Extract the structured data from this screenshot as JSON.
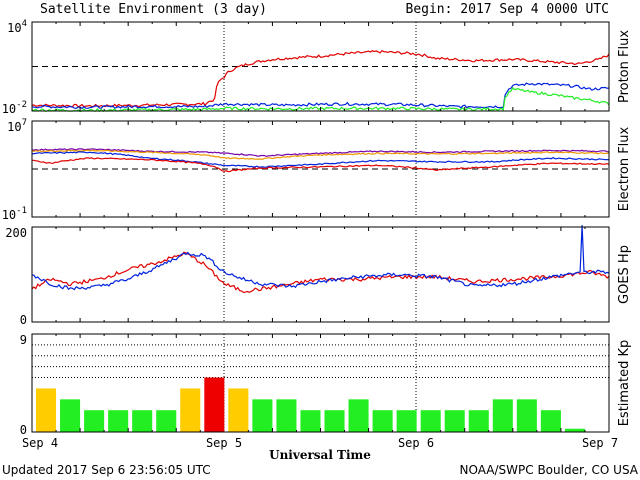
{
  "header": {
    "title": "Satellite Environment (3 day)",
    "begin": "Begin:  2017 Sep 4 0000 UTC"
  },
  "footer": {
    "updated": "Updated 2017 Sep  6 23:56:05 UTC",
    "credit": "NOAA/SWPC Boulder, CO USA"
  },
  "x_axis": {
    "label": "Universal Time",
    "ticks": [
      "Sep 4",
      "Sep 5",
      "Sep 6",
      "Sep 7"
    ]
  },
  "colors": {
    "red": "#e00000",
    "blue": "#0022dd",
    "green": "#22ee22",
    "purple": "#7700aa",
    "orange": "#ee9900",
    "kp_green": "#22ee22",
    "kp_yellow": "#ffcc00",
    "kp_red": "#ee0000"
  },
  "chart_data": [
    {
      "type": "line",
      "ylabel": "Proton Flux",
      "yscale": "log",
      "ylim": [
        0.01,
        10000
      ],
      "y_ticks": [
        {
          "base": "10",
          "exp": "4"
        },
        {
          "base": "10",
          "exp": "-2"
        }
      ],
      "threshold": 10,
      "x_days": [
        0,
        3
      ],
      "series": [
        {
          "color": "red",
          "x": [
            0,
            0.3,
            0.6,
            0.9,
            0.95,
            1.0,
            1.1,
            1.25,
            1.5,
            1.8,
            2.0,
            2.1,
            2.3,
            2.5,
            2.7,
            2.85,
            2.95,
            3.0
          ],
          "y": [
            0.025,
            0.022,
            0.025,
            0.03,
            0.06,
            2,
            12,
            30,
            50,
            100,
            70,
            35,
            25,
            30,
            20,
            15,
            30,
            60
          ]
        },
        {
          "color": "blue",
          "x": [
            0,
            0.3,
            0.6,
            0.9,
            1.0,
            1.3,
            1.6,
            1.9,
            2.2,
            2.45,
            2.5,
            2.6,
            2.8,
            2.9,
            3.0
          ],
          "y": [
            0.02,
            0.018,
            0.02,
            0.02,
            0.03,
            0.025,
            0.03,
            0.028,
            0.02,
            0.02,
            0.5,
            0.7,
            0.5,
            0.3,
            0.35
          ]
        },
        {
          "color": "green",
          "x": [
            0,
            0.3,
            0.6,
            0.9,
            1.0,
            1.3,
            1.6,
            1.9,
            2.2,
            2.45,
            2.5,
            2.6,
            2.8,
            3.0
          ],
          "y": [
            0.012,
            0.011,
            0.012,
            0.013,
            0.015,
            0.014,
            0.015,
            0.015,
            0.013,
            0.014,
            0.3,
            0.18,
            0.08,
            0.03
          ]
        }
      ]
    },
    {
      "type": "line",
      "ylabel": "Electron Flux",
      "yscale": "log",
      "ylim": [
        0.1,
        10000000
      ],
      "y_ticks": [
        {
          "base": "10",
          "exp": "7"
        },
        {
          "base": "10",
          "exp": "-1"
        }
      ],
      "threshold": 1000,
      "x_days": [
        0,
        3
      ],
      "series": [
        {
          "color": "purple",
          "x": [
            0,
            0.3,
            0.6,
            0.9,
            1.2,
            1.5,
            1.8,
            2.1,
            2.4,
            2.7,
            3.0
          ],
          "y": [
            40000,
            45000,
            30000,
            25000,
            12000,
            20000,
            30000,
            25000,
            30000,
            35000,
            30000
          ]
        },
        {
          "color": "orange",
          "x": [
            0,
            0.3,
            0.6,
            0.9,
            1.0,
            1.2,
            1.5,
            1.8,
            2.1,
            2.4,
            2.7,
            3.0
          ],
          "y": [
            30000,
            35000,
            25000,
            15000,
            8000,
            7000,
            15000,
            20000,
            18000,
            20000,
            25000,
            20000
          ]
        },
        {
          "color": "blue",
          "x": [
            0,
            0.3,
            0.6,
            0.9,
            1.0,
            1.2,
            1.5,
            1.8,
            2.1,
            2.4,
            2.7,
            3.0
          ],
          "y": [
            20000,
            25000,
            8000,
            3000,
            2000,
            1500,
            2500,
            5000,
            4000,
            4000,
            8000,
            6000
          ]
        },
        {
          "color": "red",
          "x": [
            0,
            0.1,
            0.3,
            0.6,
            0.9,
            1.0,
            1.2,
            1.5,
            1.8,
            2.1,
            2.4,
            2.7,
            3.0
          ],
          "y": [
            5000,
            3000,
            8000,
            6000,
            2500,
            600,
            1200,
            1500,
            2000,
            800,
            1500,
            3000,
            2500
          ]
        }
      ]
    },
    {
      "type": "line",
      "ylabel": "GOES Hp",
      "ylim": [
        0,
        200
      ],
      "y_ticks": [
        "200",
        "0"
      ],
      "x_days": [
        0,
        3
      ],
      "series": [
        {
          "color": "red",
          "x": [
            0,
            0.1,
            0.2,
            0.35,
            0.5,
            0.65,
            0.8,
            0.9,
            1.0,
            1.1,
            1.2,
            1.35,
            1.5,
            1.7,
            1.9,
            2.1,
            2.3,
            2.5,
            2.7,
            2.9,
            3.0
          ],
          "y": [
            70,
            90,
            80,
            90,
            110,
            125,
            145,
            120,
            80,
            65,
            70,
            80,
            90,
            90,
            95,
            95,
            85,
            90,
            95,
            105,
            95
          ]
        },
        {
          "color": "blue",
          "x": [
            0,
            0.1,
            0.2,
            0.35,
            0.5,
            0.65,
            0.8,
            0.9,
            1.0,
            1.1,
            1.2,
            1.35,
            1.5,
            1.7,
            1.9,
            2.1,
            2.3,
            2.5,
            2.7,
            2.85,
            2.86,
            2.87,
            3.0
          ],
          "y": [
            100,
            80,
            70,
            75,
            90,
            115,
            145,
            140,
            105,
            90,
            80,
            75,
            85,
            95,
            100,
            95,
            75,
            80,
            95,
            105,
            200,
            105,
            105
          ]
        }
      ]
    },
    {
      "type": "bar",
      "ylabel": "Estimated Kp",
      "ylim": [
        0,
        9
      ],
      "y_ticks": [
        "9",
        "0"
      ],
      "bar_hours": 3,
      "values": [
        4,
        3,
        2,
        2,
        2,
        2,
        4,
        5,
        4,
        3,
        3,
        2,
        2,
        3,
        2,
        2,
        2,
        2,
        2,
        3,
        3,
        2,
        0.3
      ],
      "bar_colors": [
        "yellow",
        "green",
        "green",
        "green",
        "green",
        "green",
        "yellow",
        "red",
        "yellow",
        "green",
        "green",
        "green",
        "green",
        "green",
        "green",
        "green",
        "green",
        "green",
        "green",
        "green",
        "green",
        "green",
        "green"
      ]
    }
  ]
}
